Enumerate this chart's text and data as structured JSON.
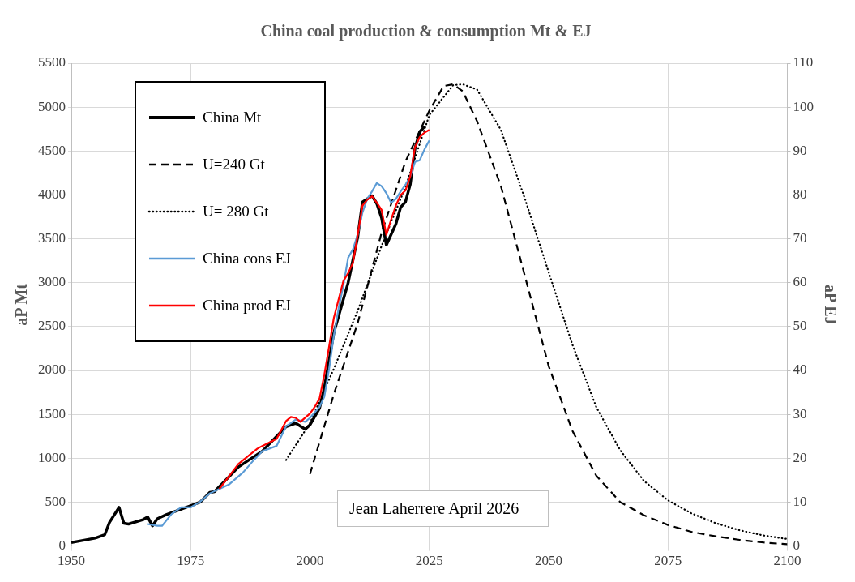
{
  "chart_data": {
    "type": "line",
    "title": "China coal production & consumption Mt & EJ",
    "ylabel": "aP Mt",
    "y2label": "aP EJ",
    "xlim": [
      1950,
      2100
    ],
    "xticks": [
      1950,
      1975,
      2000,
      2025,
      2050,
      2075,
      2100
    ],
    "ylim": [
      0,
      5500
    ],
    "yticks": [
      0,
      500,
      1000,
      1500,
      2000,
      2500,
      3000,
      3500,
      4000,
      4500,
      5000,
      5500
    ],
    "y2lim": [
      0,
      110
    ],
    "y2ticks": [
      0,
      10,
      20,
      30,
      40,
      50,
      60,
      70,
      80,
      90,
      100,
      110
    ],
    "grid": true,
    "legend": "top left",
    "marker": "none",
    "annotations": [
      "Jean Laherrere April 2026"
    ],
    "series": [
      {
        "name": "China Mt",
        "color": "#000000",
        "line_style": "solid",
        "x": [
          1950,
          1952,
          1955,
          1957,
          1958,
          1960,
          1961,
          1962,
          1965,
          1966,
          1967,
          1968,
          1970,
          1975,
          1977,
          1979,
          1980,
          1985,
          1990,
          1995,
          1997,
          1999,
          2000,
          2002,
          2003,
          2005,
          2007,
          2008,
          2010,
          2011,
          2013,
          2014,
          2015,
          2016,
          2017,
          2018,
          2019,
          2020,
          2021,
          2022,
          2023,
          2024
        ],
        "values": [
          40,
          60,
          90,
          130,
          270,
          440,
          260,
          250,
          300,
          330,
          230,
          310,
          360,
          460,
          500,
          610,
          620,
          900,
          1080,
          1360,
          1400,
          1330,
          1380,
          1570,
          1800,
          2430,
          2810,
          3000,
          3520,
          3920,
          3990,
          3900,
          3740,
          3430,
          3550,
          3670,
          3860,
          3920,
          4120,
          4530,
          4720,
          4780
        ]
      },
      {
        "name": "U=240 Gt",
        "color": "#000000",
        "line_style": "dashed",
        "x": [
          2000,
          2005,
          2010,
          2015,
          2020,
          2025,
          2028,
          2030,
          2032,
          2035,
          2040,
          2045,
          2050,
          2055,
          2060,
          2065,
          2070,
          2075,
          2080,
          2085,
          2090,
          2095,
          2100
        ],
        "values": [
          820,
          1730,
          2540,
          3570,
          4380,
          4960,
          5240,
          5260,
          5180,
          4840,
          4100,
          3080,
          2050,
          1310,
          800,
          500,
          350,
          240,
          160,
          110,
          70,
          40,
          20
        ]
      },
      {
        "name": "U= 280 Gt",
        "color": "#000000",
        "line_style": "dotted",
        "x": [
          1995,
          2000,
          2005,
          2010,
          2015,
          2020,
          2025,
          2030,
          2032,
          2035,
          2040,
          2045,
          2050,
          2055,
          2060,
          2065,
          2070,
          2075,
          2080,
          2085,
          2090,
          2095,
          2100
        ],
        "values": [
          980,
          1400,
          2020,
          2680,
          3420,
          4090,
          4910,
          5250,
          5260,
          5200,
          4740,
          3960,
          3120,
          2290,
          1580,
          1090,
          740,
          520,
          370,
          260,
          180,
          120,
          80
        ]
      },
      {
        "name": "China cons EJ",
        "color": "#5b9bd5",
        "line_style": "solid",
        "axis": "y2",
        "x": [
          1966,
          1968,
          1969,
          1971,
          1973,
          1975,
          1977,
          1979,
          1981,
          1983,
          1986,
          1988,
          1990,
          1993,
          1995,
          1997,
          1999,
          2000,
          2002,
          2003,
          2004,
          2005,
          2006,
          2007,
          2008,
          2009,
          2010,
          2011,
          2012,
          2013,
          2014,
          2015,
          2016,
          2017,
          2018,
          2019,
          2020,
          2021,
          2022,
          2023,
          2024,
          2025
        ],
        "values": [
          5,
          4.6,
          4.6,
          7.3,
          8.8,
          8.8,
          10.1,
          12,
          13,
          14,
          16.8,
          19.3,
          21.6,
          22.8,
          27.3,
          28.8,
          28.3,
          29.2,
          31.7,
          34,
          40.3,
          48,
          54.2,
          59.4,
          65.7,
          67.6,
          71,
          76,
          79.1,
          80.8,
          82.7,
          82,
          80.4,
          78.2,
          79.1,
          80.8,
          82.3,
          84.2,
          87.5,
          87.9,
          90.4,
          92.4
        ]
      },
      {
        "name": "China prod EJ",
        "color": "#ff0000",
        "line_style": "solid",
        "axis": "y2",
        "x": [
          1981,
          1985,
          1989,
          1990,
          1993,
          1995,
          1996,
          1997,
          1998,
          2000,
          2001,
          2002,
          2003,
          2004,
          2005,
          2006,
          2007,
          2008,
          2009,
          2010,
          2011,
          2012,
          2013,
          2014,
          2015,
          2016,
          2017,
          2018,
          2019,
          2020,
          2021,
          2022,
          2023,
          2024,
          2025
        ],
        "values": [
          13,
          18.7,
          22.2,
          22.8,
          24.4,
          28.5,
          29.4,
          29.2,
          28.3,
          30.2,
          31.7,
          33.6,
          39,
          45.4,
          52,
          56.2,
          60.4,
          62.2,
          64.5,
          70.9,
          77.6,
          78.9,
          79.7,
          78.2,
          76.6,
          70.9,
          74.4,
          77.6,
          80,
          81,
          84.2,
          90.9,
          93.2,
          94.2,
          94.8
        ]
      }
    ]
  }
}
